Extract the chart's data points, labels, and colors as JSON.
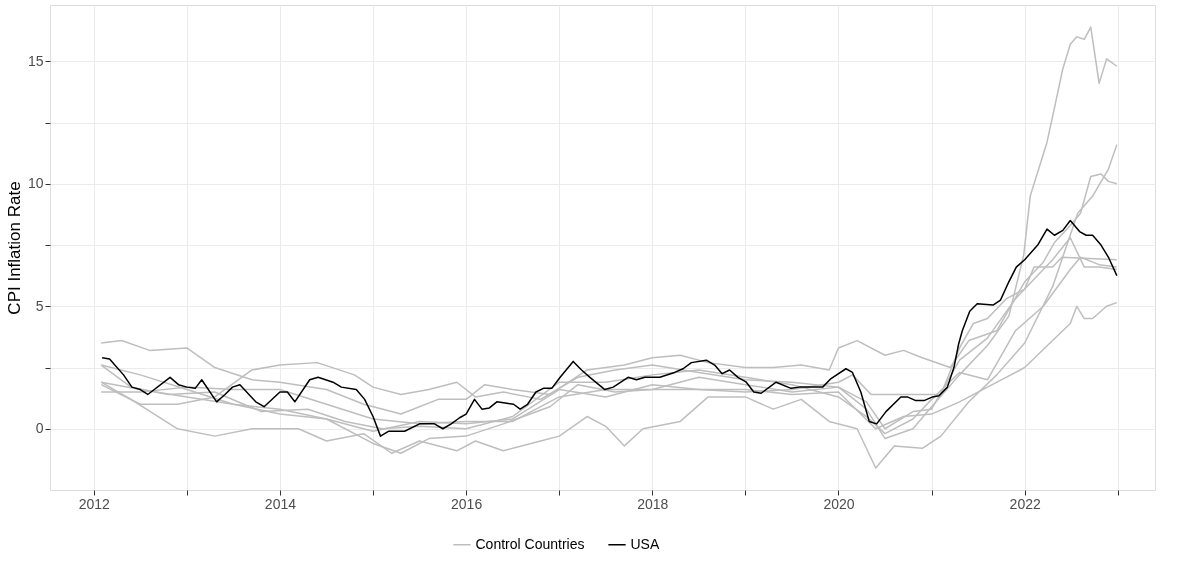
{
  "chart_data": {
    "type": "line",
    "ylabel": "CPI Inflation Rate",
    "xlim": [
      2011.53,
      2023.4
    ],
    "ylim": [
      -2.5,
      17.3
    ],
    "xticks": [
      2012,
      {
        "value": 2013,
        "label": null
      },
      2014,
      {
        "value": 2015,
        "label": null
      },
      2016,
      {
        "value": 2017,
        "label": null
      },
      2018,
      {
        "value": 2019,
        "label": null
      },
      2020,
      {
        "value": 2021,
        "label": null
      },
      2022,
      {
        "value": 2023,
        "label": null
      }
    ],
    "yticks": [
      0,
      {
        "value": 2.5,
        "label": null
      },
      5,
      {
        "value": 7.5,
        "label": null
      },
      10,
      {
        "value": 12.5,
        "label": null
      },
      15
    ],
    "grid": true,
    "legend": "bottom",
    "series": [
      {
        "name": "Control Countries",
        "color": "#bebebe",
        "x": [
          2012.08,
          2012.5,
          2013.0,
          2013.5,
          2014.0,
          2014.5,
          2015.0,
          2015.3,
          2015.6,
          2016.0,
          2016.4,
          2016.9,
          2017.2,
          2017.6,
          2018.0,
          2018.5,
          2019.0,
          2019.5,
          2020.0,
          2020.3,
          2020.5,
          2020.8,
          2021.0,
          2021.3,
          2021.6,
          2021.83,
          2021.99,
          2022.06,
          2022.24,
          2022.32,
          2022.41,
          2022.49,
          2022.56,
          2022.64,
          2022.71,
          2022.8,
          2022.88,
          2022.99
        ],
        "values": [
          2.6,
          2.2,
          1.6,
          1.0,
          0.6,
          0.4,
          -0.6,
          -1.0,
          -0.4,
          -0.3,
          0.2,
          0.9,
          1.8,
          1.5,
          1.6,
          2.1,
          1.8,
          1.5,
          1.7,
          0.8,
          -0.4,
          0.0,
          0.9,
          2.2,
          3.4,
          4.6,
          7.1,
          9.5,
          11.7,
          13.1,
          14.7,
          15.7,
          16.0,
          15.9,
          16.4,
          14.1,
          15.1,
          14.8
        ]
      },
      {
        "color": "#bebebe",
        "x": [
          2012.08,
          2012.4,
          2012.9,
          2013.3,
          2013.7,
          2014.2,
          2014.5,
          2014.9,
          2015.2,
          2015.5,
          2015.9,
          2016.1,
          2016.4,
          2016.8,
          2017.0,
          2017.3,
          2017.5,
          2017.7,
          2017.9,
          2018.3,
          2018.6,
          2019.0,
          2019.3,
          2019.6,
          2019.9,
          2020.2,
          2020.4,
          2020.6,
          2020.9,
          2021.1,
          2021.4,
          2021.7,
          2022.0,
          2022.3,
          2022.57,
          2022.73,
          2022.9,
          2022.99
        ],
        "values": [
          1.9,
          1.2,
          0.0,
          -0.3,
          0.0,
          0.0,
          -0.5,
          -0.2,
          -1.0,
          -0.5,
          -0.9,
          -0.5,
          -0.9,
          -0.5,
          -0.3,
          0.5,
          0.1,
          -0.7,
          0.0,
          0.3,
          1.3,
          1.3,
          0.8,
          1.2,
          0.3,
          0.0,
          -1.6,
          -0.7,
          -0.8,
          -0.3,
          1.1,
          2.2,
          3.5,
          5.8,
          8.8,
          9.5,
          10.6,
          11.6
        ]
      },
      {
        "color": "#bebebe",
        "x": [
          2012.08,
          2012.3,
          2012.6,
          2013.0,
          2013.3,
          2013.7,
          2014.0,
          2014.5,
          2014.9,
          2015.3,
          2015.7,
          2016.0,
          2016.2,
          2016.5,
          2016.9,
          2017.3,
          2017.7,
          2018.0,
          2018.3,
          2018.6,
          2019.0,
          2019.3,
          2019.6,
          2019.9,
          2020.0,
          2020.2,
          2020.5,
          2020.7,
          2020.9,
          2021.2,
          2021.4,
          2021.7,
          2022.0,
          2022.2,
          2022.32,
          2022.49,
          2022.6,
          2022.71,
          2022.82,
          2022.9,
          2022.99
        ],
        "values": [
          3.5,
          3.6,
          3.2,
          3.3,
          2.5,
          2.0,
          1.9,
          1.6,
          1.0,
          0.6,
          1.2,
          1.2,
          1.8,
          1.6,
          1.4,
          2.4,
          2.6,
          2.9,
          3.0,
          2.7,
          2.5,
          2.5,
          2.6,
          2.4,
          3.3,
          3.6,
          3.0,
          3.2,
          2.9,
          2.5,
          3.6,
          4.0,
          6.0,
          6.8,
          7.6,
          8.3,
          8.8,
          10.3,
          10.4,
          10.1,
          10.0
        ]
      },
      {
        "color": "#bebebe",
        "x": [
          2012.08,
          2012.5,
          2013.0,
          2013.5,
          2014.0,
          2014.5,
          2015.0,
          2015.5,
          2016.0,
          2016.5,
          2017.0,
          2017.5,
          2018.0,
          2018.5,
          2019.0,
          2019.5,
          2020.0,
          2020.15,
          2020.35,
          2021.1,
          2021.3,
          2021.45,
          2021.6,
          2021.8,
          2022.0,
          2022.1,
          2022.3,
          2022.4,
          2022.99
        ],
        "values": [
          1.5,
          1.5,
          1.7,
          1.6,
          1.6,
          1.0,
          0.4,
          0.2,
          0.3,
          0.3,
          1.3,
          1.6,
          1.6,
          1.6,
          1.5,
          1.6,
          1.9,
          2.2,
          1.4,
          1.4,
          3.3,
          4.3,
          4.5,
          5.3,
          5.7,
          6.6,
          6.6,
          7.0,
          6.9
        ]
      },
      {
        "color": "#bebebe",
        "x": [
          2012.08,
          2012.5,
          2012.9,
          2013.3,
          2013.7,
          2014.0,
          2014.4,
          2014.8,
          2015.0,
          2015.3,
          2015.6,
          2015.9,
          2016.1,
          2016.4,
          2016.8,
          2017.2,
          2017.6,
          2018.0,
          2018.5,
          2019.0,
          2019.5,
          2020.0,
          2020.3,
          2020.5,
          2020.8,
          2021.0,
          2021.3,
          2021.6,
          2021.9,
          2022.1,
          2022.3,
          2022.49,
          2022.64,
          2022.8,
          2022.99
        ],
        "values": [
          1.8,
          1.0,
          1.0,
          1.3,
          2.4,
          2.6,
          2.7,
          2.2,
          1.7,
          1.4,
          1.6,
          1.9,
          1.3,
          1.5,
          1.2,
          2.1,
          2.4,
          2.6,
          2.3,
          2.0,
          1.9,
          1.7,
          1.1,
          0.0,
          0.7,
          0.8,
          2.8,
          3.7,
          5.3,
          6.1,
          6.9,
          7.8,
          6.6,
          6.6,
          6.5
        ]
      },
      {
        "color": "#bebebe",
        "x": [
          2012.08,
          2012.5,
          2013.0,
          2013.5,
          2014.0,
          2014.5,
          2015.0,
          2015.5,
          2016.0,
          2016.5,
          2017.0,
          2017.5,
          2018.0,
          2018.5,
          2019.0,
          2019.5,
          2020.0,
          2020.4,
          2020.7,
          2021.0,
          2021.3,
          2021.6,
          2022.0,
          2022.3,
          2022.49,
          2022.56,
          2022.64,
          2022.73,
          2022.88,
          2022.99
        ],
        "values": [
          1.9,
          1.6,
          1.3,
          1.0,
          0.8,
          0.4,
          -0.1,
          0.3,
          0.2,
          0.4,
          1.6,
          1.3,
          1.8,
          1.6,
          1.6,
          1.4,
          1.5,
          0.0,
          0.5,
          0.6,
          1.1,
          1.7,
          2.5,
          3.6,
          4.3,
          5.0,
          4.5,
          4.5,
          5.0,
          5.15
        ]
      },
      {
        "color": "#bebebe",
        "x": [
          2012.08,
          2012.4,
          2012.8,
          2013.3,
          2013.8,
          2014.3,
          2014.7,
          2015.1,
          2015.5,
          2016.0,
          2016.5,
          2017.0,
          2017.5,
          2018.0,
          2018.5,
          2019.0,
          2019.5,
          2020.0,
          2020.3,
          2020.5,
          2020.8,
          2021.0,
          2021.3,
          2021.6,
          2021.9,
          2022.2,
          2022.49,
          2022.6,
          2022.8,
          2022.99
        ],
        "values": [
          2.6,
          1.7,
          1.4,
          1.5,
          0.7,
          0.8,
          0.3,
          0.0,
          0.1,
          0.0,
          0.5,
          1.9,
          1.9,
          2.2,
          2.4,
          2.1,
          1.8,
          1.3,
          0.5,
          -0.2,
          0.4,
          1.2,
          2.3,
          2.0,
          4.0,
          5.0,
          6.5,
          7.0,
          6.7,
          6.6
        ]
      },
      {
        "name": "USA",
        "color": "#000000",
        "x": [
          2012.09,
          2012.17,
          2012.32,
          2012.41,
          2012.5,
          2012.58,
          2012.82,
          2012.91,
          2013.0,
          2013.09,
          2013.16,
          2013.32,
          2013.41,
          2013.49,
          2013.57,
          2013.74,
          2013.83,
          2014.0,
          2014.08,
          2014.16,
          2014.32,
          2014.41,
          2014.57,
          2014.66,
          2014.82,
          2014.91,
          2015.0,
          2015.08,
          2015.17,
          2015.25,
          2015.34,
          2015.5,
          2015.66,
          2015.75,
          2015.84,
          2015.93,
          2016.0,
          2016.09,
          2016.17,
          2016.25,
          2016.33,
          2016.42,
          2016.51,
          2016.58,
          2016.66,
          2016.75,
          2016.83,
          2016.92,
          2017.01,
          2017.15,
          2017.24,
          2017.33,
          2017.49,
          2017.58,
          2017.74,
          2017.83,
          2017.92,
          2018.08,
          2018.24,
          2018.33,
          2018.42,
          2018.58,
          2018.67,
          2018.75,
          2018.83,
          2018.92,
          2019.01,
          2019.09,
          2019.17,
          2019.33,
          2019.49,
          2019.58,
          2019.66,
          2019.83,
          2019.92,
          2020.08,
          2020.15,
          2020.24,
          2020.33,
          2020.41,
          2020.51,
          2020.67,
          2020.74,
          2020.83,
          2020.92,
          2021.01,
          2021.08,
          2021.17,
          2021.24,
          2021.29,
          2021.33,
          2021.41,
          2021.49,
          2021.66,
          2021.74,
          2021.83,
          2021.91,
          2022.0,
          2022.14,
          2022.24,
          2022.32,
          2022.41,
          2022.49,
          2022.59,
          2022.66,
          2022.73,
          2022.82,
          2022.9,
          2022.99
        ],
        "values": [
          2.9,
          2.85,
          2.2,
          1.7,
          1.6,
          1.4,
          2.1,
          1.8,
          1.7,
          1.65,
          2.0,
          1.1,
          1.4,
          1.7,
          1.8,
          1.1,
          0.9,
          1.5,
          1.5,
          1.1,
          2.0,
          2.1,
          1.9,
          1.7,
          1.6,
          1.2,
          0.5,
          -0.3,
          -0.1,
          -0.1,
          -0.1,
          0.2,
          0.2,
          0.0,
          0.2,
          0.45,
          0.6,
          1.2,
          0.8,
          0.85,
          1.1,
          1.05,
          1.0,
          0.8,
          1.0,
          1.5,
          1.65,
          1.65,
          2.1,
          2.75,
          2.4,
          2.1,
          1.6,
          1.7,
          2.1,
          2.0,
          2.1,
          2.1,
          2.3,
          2.45,
          2.7,
          2.8,
          2.6,
          2.25,
          2.4,
          2.1,
          1.9,
          1.5,
          1.45,
          1.9,
          1.65,
          1.7,
          1.7,
          1.7,
          2.05,
          2.45,
          2.3,
          1.5,
          0.3,
          0.2,
          0.7,
          1.3,
          1.3,
          1.15,
          1.15,
          1.3,
          1.35,
          1.7,
          2.5,
          3.45,
          4.0,
          4.8,
          5.1,
          5.05,
          5.25,
          6.0,
          6.6,
          6.9,
          7.5,
          8.15,
          7.9,
          8.1,
          8.5,
          8.05,
          7.9,
          7.9,
          7.5,
          7.0,
          6.25
        ]
      }
    ]
  }
}
